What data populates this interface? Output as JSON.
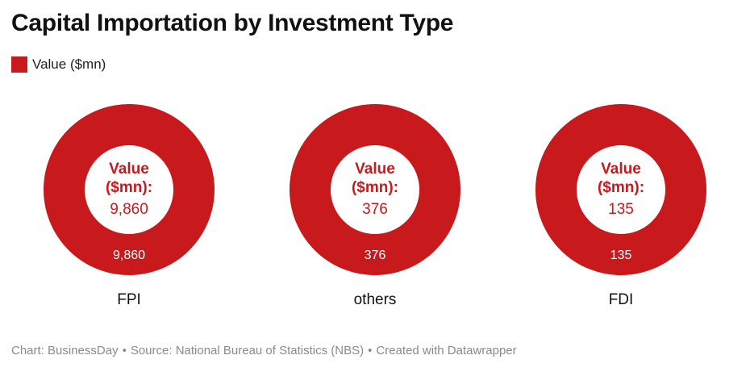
{
  "title": "Capital Importation by Investment Type",
  "colors": {
    "accent": "#c8191c",
    "label_text": "#ffffff",
    "text": "#111111"
  },
  "chart_data": {
    "type": "pie",
    "variant": "donut-small-multiples",
    "title": "Capital Importation by Investment Type",
    "legend": {
      "position": "top-left",
      "entries": [
        "Value ($mn)"
      ]
    },
    "series": [
      {
        "name": "Value ($mn)",
        "categories": [
          "FPI",
          "others",
          "FDI"
        ],
        "values": [
          9860,
          376,
          135
        ]
      }
    ],
    "panels": [
      {
        "category": "FPI",
        "center_label_1": "Value",
        "center_label_2": "($mn):",
        "center_value": "9,860",
        "slice_label": "9,860"
      },
      {
        "category": "others",
        "center_label_1": "Value",
        "center_label_2": "($mn):",
        "center_value": "376",
        "slice_label": "376"
      },
      {
        "category": "FDI",
        "center_label_1": "Value",
        "center_label_2": "($mn):",
        "center_value": "135",
        "slice_label": "135"
      }
    ]
  },
  "footer": {
    "chart": "Chart: BusinessDay",
    "source": "Source: National Bureau of Statistics (NBS)",
    "created": "Created with Datawrapper",
    "separator": "•"
  }
}
